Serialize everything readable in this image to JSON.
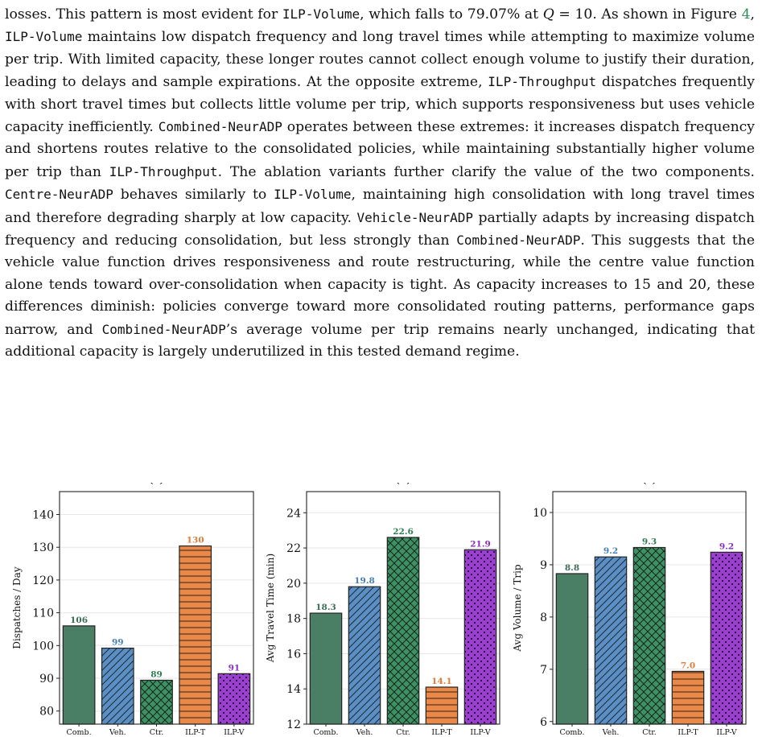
{
  "paragraph": {
    "segments": [
      {
        "t": "losses. This pattern is most evident for "
      },
      {
        "t": "ILP-Volume",
        "s": "mono"
      },
      {
        "t": ", which falls to 79.07% at "
      },
      {
        "t": "Q",
        "s": "math"
      },
      {
        "t": " = 10. As shown in Figure "
      },
      {
        "t": "4",
        "s": "link"
      },
      {
        "t": ", "
      },
      {
        "t": "ILP-Volume",
        "s": "mono"
      },
      {
        "t": " maintains low dispatch frequency and long travel times while attempting to maximize volume per trip. With limited capacity, these longer routes cannot collect enough volume to justify their duration, leading to delays and sample expirations. At the opposite extreme, "
      },
      {
        "t": "ILP-Throughput",
        "s": "mono"
      },
      {
        "t": " dispatches frequently with short travel times but collects little volume per trip, which supports responsiveness but uses vehicle capacity inefficiently. "
      },
      {
        "t": "Combined-NeurADP",
        "s": "mono"
      },
      {
        "t": " operates between these extremes: it increases dispatch frequency and shortens routes relative to the consolidated policies, while maintaining substantially higher volume per trip than "
      },
      {
        "t": "ILP-Throughput",
        "s": "mono"
      },
      {
        "t": ". The ablation variants further clarify the value of the two components. "
      },
      {
        "t": "Centre-NeurADP",
        "s": "mono"
      },
      {
        "t": " behaves similarly to "
      },
      {
        "t": "ILP-Volume",
        "s": "mono"
      },
      {
        "t": ", maintaining high consolidation with long travel times and therefore degrading sharply at low capacity. "
      },
      {
        "t": "Vehicle-NeurADP",
        "s": "mono"
      },
      {
        "t": " partially adapts by increasing dispatch frequency and reducing consolidation, but less strongly than "
      },
      {
        "t": "Combined-NeurADP",
        "s": "mono"
      },
      {
        "t": ". This suggests that the vehicle value function drives responsiveness and route restructuring, while the centre value function alone tends toward over-consolidation when capacity is tight. As capacity increases to 15 and 20, these differences diminish: policies converge toward more consolidated routing patterns, performance gaps narrow, and "
      },
      {
        "t": "Combined-NeurADP",
        "s": "mono"
      },
      {
        "t": "’s average volume per trip remains nearly unchanged, indicating that additional capacity is largely underutilized in this tested demand regime."
      }
    ]
  },
  "chart_data": [
    {
      "type": "bar",
      "title": "(a)",
      "ylabel": "Dispatches / Day",
      "categories": [
        "Comb.",
        "Veh.",
        "Ctr.",
        "ILP-T",
        "ILP-V"
      ],
      "values": [
        106,
        99,
        89,
        130,
        91
      ],
      "value_labels": [
        "106",
        "99",
        "89",
        "130",
        "91"
      ],
      "raw_values": [
        106,
        99.2,
        89.4,
        130.4,
        91.4
      ],
      "ylim": [
        76,
        147
      ],
      "yticks": [
        80,
        90,
        100,
        110,
        120,
        130,
        140
      ],
      "grid": true
    },
    {
      "type": "bar",
      "title": "(b)",
      "ylabel": "Avg Travel Time (min)",
      "categories": [
        "Comb.",
        "Veh.",
        "Ctr.",
        "ILP-T",
        "ILP-V"
      ],
      "values": [
        18.3,
        19.8,
        22.6,
        14.1,
        21.9
      ],
      "value_labels": [
        "18.3",
        "19.8",
        "22.6",
        "14.1",
        "21.9"
      ],
      "ylim": [
        12,
        25.2
      ],
      "yticks": [
        12,
        14,
        16,
        18,
        20,
        22,
        24
      ],
      "grid": true
    },
    {
      "type": "bar",
      "title": "(c)",
      "ylabel": "Avg Volume / Trip",
      "categories": [
        "Comb.",
        "Veh.",
        "Ctr.",
        "ILP-T",
        "ILP-V"
      ],
      "values": [
        8.8,
        9.2,
        9.3,
        7.0,
        9.2
      ],
      "value_labels": [
        "8.8",
        "9.2",
        "9.3",
        "7.0",
        "9.2"
      ],
      "raw_values": [
        8.83,
        9.15,
        9.33,
        6.96,
        9.24
      ],
      "ylim": [
        5.95,
        10.4
      ],
      "yticks": [
        6,
        7,
        8,
        9,
        10
      ],
      "grid": true
    }
  ],
  "series_style": {
    "fills": [
      "#4a7f65",
      "#5b8fc3",
      "#3f9163",
      "#e8894a",
      "#9a3fd0"
    ],
    "label_colors": [
      "#3c6e55",
      "#4a7fb5",
      "#2f7d52",
      "#e07b39",
      "#8a2fc0"
    ],
    "patterns": [
      "solid-pattern",
      "diagonal-hatch",
      "cross-hatch",
      "horizontal-hatch",
      "dot-pattern"
    ]
  }
}
